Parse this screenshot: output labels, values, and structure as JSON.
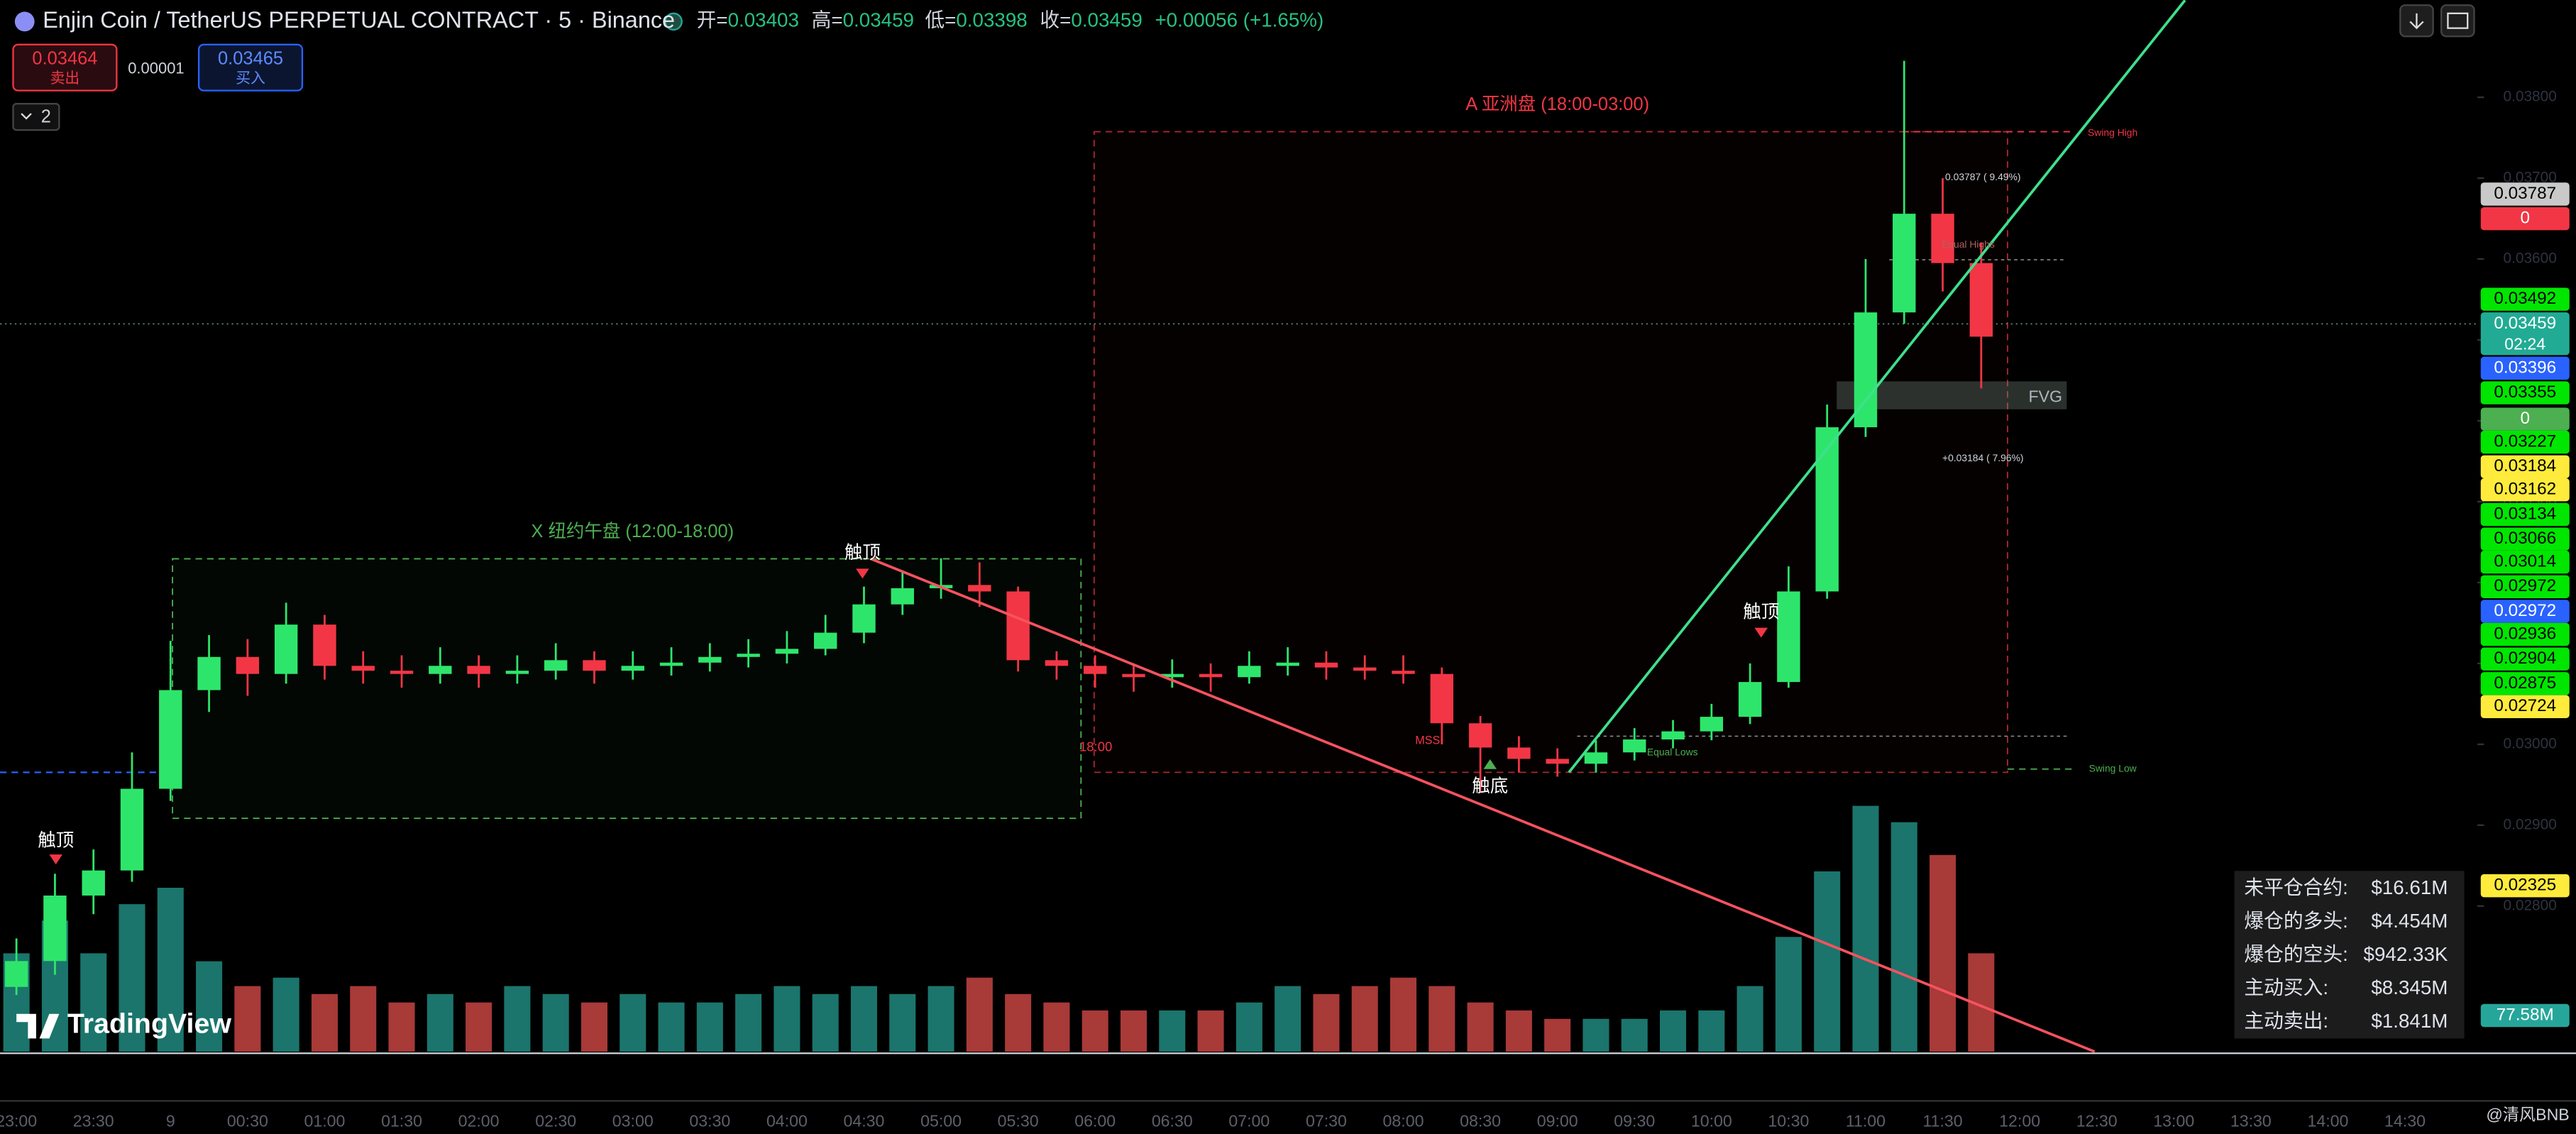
{
  "header": {
    "title": "Enjin Coin / TetherUS PERPETUAL CONTRACT · 5 · Binance",
    "ohlc": [
      {
        "label": "开=",
        "value": "0.03403"
      },
      {
        "label": "高=",
        "value": "0.03459"
      },
      {
        "label": "低=",
        "value": "0.03398"
      },
      {
        "label": "收=",
        "value": "0.03459"
      }
    ],
    "change": "+0.00056 (+1.65%)"
  },
  "order_panel": {
    "sell_price": "0.03464",
    "sell_label": "卖出",
    "spread": "0.00001",
    "buy_price": "0.03465",
    "buy_label": "买入",
    "indicator_count": "2"
  },
  "chart_data": {
    "type": "candlestick",
    "categories": [
      "23:00",
      null,
      "23:30",
      null,
      "9",
      null,
      "00:30",
      null,
      "01:00",
      null,
      "01:30",
      null,
      "02:00",
      null,
      "02:30",
      null,
      "03:00",
      null,
      "03:30",
      null,
      "04:00",
      null,
      "04:30",
      null,
      "05:00",
      null,
      "05:30",
      null,
      "06:00",
      null,
      "06:30",
      null,
      "07:00",
      null,
      "07:30",
      null,
      "08:00",
      null,
      "08:30",
      null,
      "09:00",
      null,
      "09:30",
      null,
      "10:00",
      null,
      "10:30",
      null,
      "11:00",
      null,
      "11:30",
      null,
      "12:00",
      null,
      "12:30",
      null,
      "13:00",
      null,
      "13:30",
      null,
      "14:00",
      null,
      "14:30"
    ],
    "open": [
      0.027,
      0.02732,
      0.02813,
      0.02844,
      0.02945,
      0.03067,
      0.03108,
      0.03087,
      0.03148,
      0.03097,
      0.03091,
      0.03087,
      0.03097,
      0.03087,
      0.03091,
      0.03104,
      0.03091,
      0.03097,
      0.03101,
      0.03108,
      0.03112,
      0.03118,
      0.03138,
      0.03173,
      0.03193,
      0.03197,
      0.03189,
      0.03104,
      0.03097,
      0.03087,
      0.03083,
      0.03087,
      0.03083,
      0.03097,
      0.03101,
      0.03095,
      0.03091,
      0.03087,
      0.03026,
      0.02996,
      0.02982,
      0.02976,
      0.0299,
      0.03006,
      0.03016,
      0.03034,
      0.03077,
      0.03189,
      0.03392,
      0.03534,
      0.03656,
      0.03595,
      null,
      null,
      null,
      null,
      null,
      null,
      null,
      null,
      null,
      null,
      null
    ],
    "high": [
      0.0276,
      0.0284,
      0.0287,
      0.0299,
      0.03128,
      0.03135,
      0.0313,
      0.03175,
      0.0316,
      0.03115,
      0.0311,
      0.0312,
      0.0311,
      0.0311,
      0.03125,
      0.03115,
      0.03115,
      0.0312,
      0.03125,
      0.0313,
      0.0314,
      0.0316,
      0.03195,
      0.03215,
      0.0323,
      0.03225,
      0.03195,
      0.03115,
      0.0311,
      0.031,
      0.03105,
      0.031,
      0.03115,
      0.0312,
      0.03115,
      0.0311,
      0.0311,
      0.03095,
      0.03035,
      0.0301,
      0.02995,
      0.03005,
      0.0302,
      0.0303,
      0.0305,
      0.031,
      0.0322,
      0.0342,
      0.036,
      0.03845,
      0.037,
      0.0362,
      null,
      null,
      null,
      null,
      null,
      null,
      null,
      null,
      null,
      null,
      null
    ],
    "low": [
      0.0269,
      0.02715,
      0.0279,
      0.0283,
      0.0293,
      0.0304,
      0.0306,
      0.03075,
      0.0308,
      0.03075,
      0.0307,
      0.03075,
      0.0307,
      0.03075,
      0.0308,
      0.03075,
      0.0308,
      0.03085,
      0.0309,
      0.03095,
      0.031,
      0.0311,
      0.03125,
      0.0316,
      0.0318,
      0.0317,
      0.0309,
      0.0308,
      0.0307,
      0.03065,
      0.0307,
      0.03065,
      0.03075,
      0.03085,
      0.0308,
      0.0308,
      0.03075,
      0.03,
      0.0294,
      0.02965,
      0.0296,
      0.02965,
      0.0298,
      0.02995,
      0.03005,
      0.03025,
      0.0307,
      0.0318,
      0.0338,
      0.0352,
      0.0356,
      0.0344,
      null,
      null,
      null,
      null,
      null,
      null,
      null,
      null,
      null,
      null,
      null
    ],
    "close": [
      0.02732,
      0.02813,
      0.02844,
      0.02945,
      0.03067,
      0.03108,
      0.03087,
      0.03148,
      0.03097,
      0.03091,
      0.03087,
      0.03097,
      0.03087,
      0.03091,
      0.03104,
      0.03091,
      0.03097,
      0.03101,
      0.03108,
      0.03112,
      0.03118,
      0.03138,
      0.03173,
      0.03193,
      0.03197,
      0.03189,
      0.03104,
      0.03097,
      0.03087,
      0.03083,
      0.03087,
      0.03083,
      0.03097,
      0.03101,
      0.03095,
      0.03091,
      0.03087,
      0.03026,
      0.02996,
      0.02982,
      0.02976,
      0.0299,
      0.03006,
      0.03016,
      0.03034,
      0.03077,
      0.03189,
      0.03392,
      0.03534,
      0.03656,
      0.03595,
      0.03504,
      null,
      null,
      null,
      null,
      null,
      null,
      null,
      null,
      null,
      null,
      null
    ],
    "volume": [
      210,
      280,
      210,
      315,
      350,
      193,
      140,
      158,
      123,
      140,
      105,
      123,
      105,
      140,
      123,
      105,
      123,
      105,
      105,
      123,
      140,
      123,
      140,
      123,
      140,
      158,
      123,
      105,
      88,
      88,
      88,
      88,
      105,
      140,
      123,
      140,
      158,
      140,
      105,
      88,
      70,
      70,
      70,
      88,
      88,
      140,
      245,
      385,
      525,
      490,
      420,
      210,
      null,
      null,
      null,
      null,
      null,
      null,
      null,
      null,
      null,
      null,
      null
    ],
    "up_color": "#2ee56b",
    "down_color": "#f23645",
    "volume_up_color": "#26a69a",
    "volume_down_color": "#ef5350",
    "ylim": [
      0.0262,
      0.0392
    ],
    "yticks": [
      {
        "value": 0.028,
        "label": "0.02800"
      },
      {
        "value": 0.029,
        "label": "0.02900"
      },
      {
        "value": 0.03,
        "label": "0.03000"
      },
      {
        "value": 0.031,
        "label": "0.03100"
      },
      {
        "value": 0.032,
        "label": "0.03200"
      },
      {
        "value": 0.033,
        "label": "0.03300"
      },
      {
        "value": 0.034,
        "label": "0.03400"
      },
      {
        "value": 0.035,
        "label": "0.03500"
      },
      {
        "value": 0.036,
        "label": "0.03600"
      },
      {
        "value": 0.037,
        "label": "0.03700"
      },
      {
        "value": 0.038,
        "label": "0.03800"
      }
    ],
    "volume_ylim": [
      0,
      600
    ],
    "grid": false
  },
  "price_tags": [
    {
      "text": "0.03787",
      "bg": "#c9c9c9",
      "fg": "#000"
    },
    {
      "text": "0",
      "bg": "#f23645",
      "fg": "#fff"
    },
    {
      "text": "0.03492",
      "bg": "#00e600",
      "fg": "#000"
    },
    {
      "text": "0.03459",
      "bg": "#22ab94",
      "fg": "#fff"
    },
    {
      "text": "0.03396",
      "bg": "#2962ff",
      "fg": "#fff"
    },
    {
      "text": "0.03355",
      "bg": "#00e600",
      "fg": "#000"
    },
    {
      "text": "0",
      "bg": "#4caf50",
      "fg": "#fff"
    },
    {
      "text": "0.03227",
      "bg": "#00e600",
      "fg": "#000"
    },
    {
      "text": "0.03184",
      "bg": "#ffeb3b",
      "fg": "#000"
    },
    {
      "text": "0.03162",
      "bg": "#ffeb3b",
      "fg": "#000"
    },
    {
      "text": "0.03134",
      "bg": "#00e600",
      "fg": "#000"
    },
    {
      "text": "0.03066",
      "bg": "#00e600",
      "fg": "#000"
    },
    {
      "text": "0.03014",
      "bg": "#00e600",
      "fg": "#000"
    },
    {
      "text": "0.02972",
      "bg": "#00e600",
      "fg": "#000"
    },
    {
      "text": "0.02972",
      "bg": "#2962ff",
      "fg": "#fff"
    },
    {
      "text": "0.02936",
      "bg": "#00e600",
      "fg": "#000"
    },
    {
      "text": "0.02904",
      "bg": "#00e600",
      "fg": "#000"
    },
    {
      "text": "0.02875",
      "bg": "#00e600",
      "fg": "#000"
    },
    {
      "text": "0.02724",
      "bg": "#ffeb3b",
      "fg": "#000"
    },
    {
      "text": "0.02325",
      "bg": "#ffeb3b",
      "fg": "#000"
    },
    {
      "text": "77.58M",
      "bg": "#26a69a",
      "fg": "#fff"
    }
  ],
  "countdown": "02:24",
  "annotations": [
    "X 纽约午盘 (12:00-18:00)",
    "A 亚洲盘 (18:00-03:00)",
    "触顶",
    "触顶",
    "触顶",
    "触底",
    "MSS",
    "Equal Highs",
    "Equal Lows",
    "Swing High",
    "Swing Low",
    "0.03787 ( 9.49%)",
    "+0.03184 ( 7.96%)",
    "FVG",
    "18:00"
  ],
  "stats": [
    {
      "label": "未平仓合约:",
      "value": "$16.61M"
    },
    {
      "label": "爆仓的多头:",
      "value": "$4.454M"
    },
    {
      "label": "爆仓的空头:",
      "value": "$942.33K"
    },
    {
      "label": "主动买入:",
      "value": "$8.345M"
    },
    {
      "label": "主动卖出:",
      "value": "$1.841M"
    }
  ],
  "watermark": "TradingView",
  "footer": "@清风BNB"
}
